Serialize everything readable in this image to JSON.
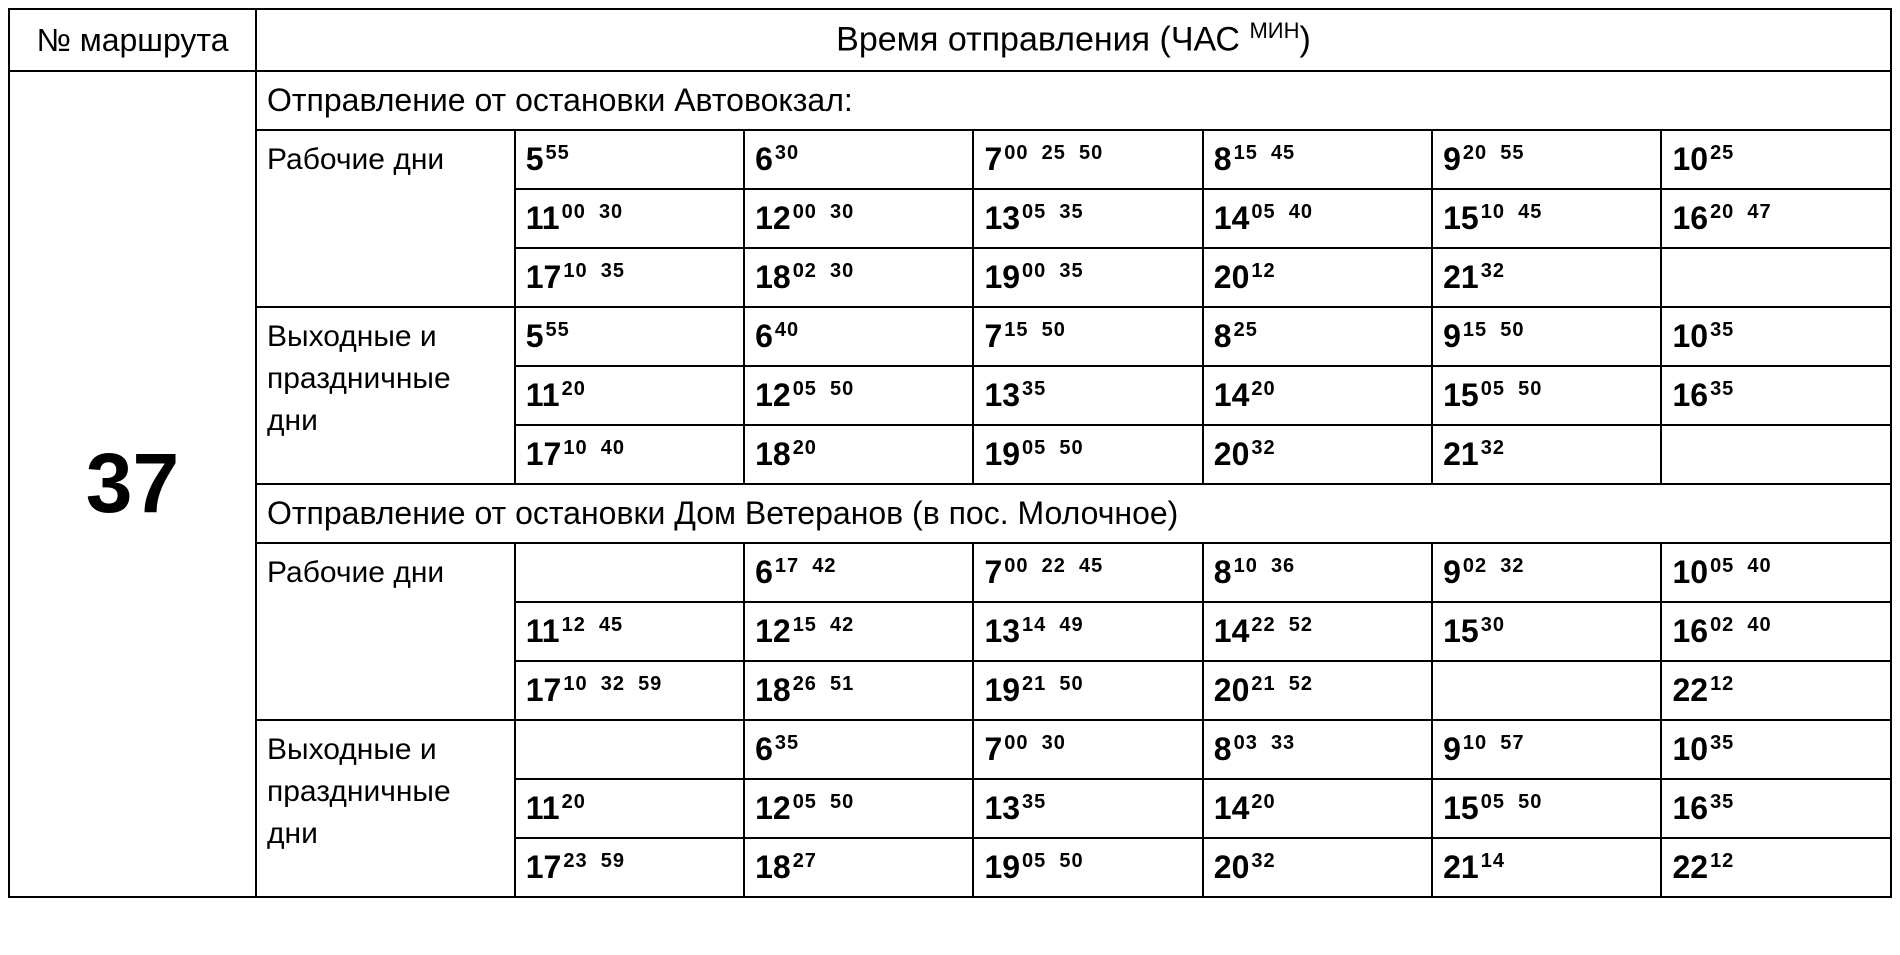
{
  "header": {
    "route_col": "№ маршрута",
    "time_col_prefix": "Время отправления (ЧАС",
    "time_col_suffix": "МИН",
    "time_col_close": ")"
  },
  "route_number": "37",
  "sections": [
    {
      "title": "Отправление от остановки Автовокзал:",
      "day_groups": [
        {
          "label": "Рабочие дни",
          "rows": [
            [
              {
                "h": "5",
                "m": [
                  "55"
                ]
              },
              {
                "h": "6",
                "m": [
                  "30"
                ]
              },
              {
                "h": "7",
                "m": [
                  "00",
                  "25",
                  "50"
                ]
              },
              {
                "h": "8",
                "m": [
                  "15",
                  "45"
                ]
              },
              {
                "h": "9",
                "m": [
                  "20",
                  "55"
                ]
              },
              {
                "h": "10",
                "m": [
                  "25"
                ]
              }
            ],
            [
              {
                "h": "11",
                "m": [
                  "00",
                  "30"
                ]
              },
              {
                "h": "12",
                "m": [
                  "00",
                  "30"
                ]
              },
              {
                "h": "13",
                "m": [
                  "05",
                  "35"
                ]
              },
              {
                "h": "14",
                "m": [
                  "05",
                  "40"
                ]
              },
              {
                "h": "15",
                "m": [
                  "10",
                  "45"
                ]
              },
              {
                "h": "16",
                "m": [
                  "20",
                  "47"
                ]
              }
            ],
            [
              {
                "h": "17",
                "m": [
                  "10",
                  "35"
                ]
              },
              {
                "h": "18",
                "m": [
                  "02",
                  "30"
                ]
              },
              {
                "h": "19",
                "m": [
                  "00",
                  "35"
                ]
              },
              {
                "h": "20",
                "m": [
                  "12"
                ]
              },
              {
                "h": "21",
                "m": [
                  "32"
                ]
              },
              null
            ]
          ]
        },
        {
          "label": "Выходные и праздничные дни",
          "rows": [
            [
              {
                "h": "5",
                "m": [
                  "55"
                ]
              },
              {
                "h": "6",
                "m": [
                  "40"
                ]
              },
              {
                "h": "7",
                "m": [
                  "15",
                  "50"
                ]
              },
              {
                "h": "8",
                "m": [
                  "25"
                ]
              },
              {
                "h": "9",
                "m": [
                  "15",
                  "50"
                ]
              },
              {
                "h": "10",
                "m": [
                  "35"
                ]
              }
            ],
            [
              {
                "h": "11",
                "m": [
                  "20"
                ]
              },
              {
                "h": "12",
                "m": [
                  "05",
                  "50"
                ]
              },
              {
                "h": "13",
                "m": [
                  "35"
                ]
              },
              {
                "h": "14",
                "m": [
                  "20"
                ]
              },
              {
                "h": "15",
                "m": [
                  "05",
                  "50"
                ]
              },
              {
                "h": "16",
                "m": [
                  "35"
                ]
              }
            ],
            [
              {
                "h": "17",
                "m": [
                  "10",
                  "40"
                ]
              },
              {
                "h": "18",
                "m": [
                  "20"
                ]
              },
              {
                "h": "19",
                "m": [
                  "05",
                  "50"
                ]
              },
              {
                "h": "20",
                "m": [
                  "32"
                ]
              },
              {
                "h": "21",
                "m": [
                  "32"
                ]
              },
              null
            ]
          ]
        }
      ]
    },
    {
      "title": "Отправление от остановки Дом Ветеранов (в пос. Молочное)",
      "day_groups": [
        {
          "label": "Рабочие дни",
          "rows": [
            [
              null,
              {
                "h": "6",
                "m": [
                  "17",
                  "42"
                ]
              },
              {
                "h": "7",
                "m": [
                  "00",
                  "22",
                  "45"
                ]
              },
              {
                "h": "8",
                "m": [
                  "10",
                  "36"
                ]
              },
              {
                "h": "9",
                "m": [
                  "02",
                  "32"
                ]
              },
              {
                "h": "10",
                "m": [
                  "05",
                  "40"
                ]
              }
            ],
            [
              {
                "h": "11",
                "m": [
                  "12",
                  "45"
                ]
              },
              {
                "h": "12",
                "m": [
                  "15",
                  "42"
                ]
              },
              {
                "h": "13",
                "m": [
                  "14",
                  "49"
                ]
              },
              {
                "h": "14",
                "m": [
                  "22",
                  "52"
                ]
              },
              {
                "h": "15",
                "m": [
                  "30"
                ]
              },
              {
                "h": "16",
                "m": [
                  "02",
                  "40"
                ]
              }
            ],
            [
              {
                "h": "17",
                "m": [
                  "10",
                  "32",
                  "59"
                ]
              },
              {
                "h": "18",
                "m": [
                  "26",
                  "51"
                ]
              },
              {
                "h": "19",
                "m": [
                  "21",
                  "50"
                ]
              },
              {
                "h": "20",
                "m": [
                  "21",
                  "52"
                ]
              },
              null,
              {
                "h": "22",
                "m": [
                  "12"
                ]
              }
            ]
          ]
        },
        {
          "label": "Выходные и праздничные дни",
          "rows": [
            [
              null,
              {
                "h": "6",
                "m": [
                  "35"
                ]
              },
              {
                "h": "7",
                "m": [
                  "00",
                  "30"
                ]
              },
              {
                "h": "8",
                "m": [
                  "03",
                  "33"
                ]
              },
              {
                "h": "9",
                "m": [
                  "10",
                  "57"
                ]
              },
              {
                "h": "10",
                "m": [
                  "35"
                ]
              }
            ],
            [
              {
                "h": "11",
                "m": [
                  "20"
                ]
              },
              {
                "h": "12",
                "m": [
                  "05",
                  "50"
                ]
              },
              {
                "h": "13",
                "m": [
                  "35"
                ]
              },
              {
                "h": "14",
                "m": [
                  "20"
                ]
              },
              {
                "h": "15",
                "m": [
                  "05",
                  "50"
                ]
              },
              {
                "h": "16",
                "m": [
                  "35"
                ]
              }
            ],
            [
              {
                "h": "17",
                "m": [
                  "23",
                  "59"
                ]
              },
              {
                "h": "18",
                "m": [
                  "27"
                ]
              },
              {
                "h": "19",
                "m": [
                  "05",
                  "50"
                ]
              },
              {
                "h": "20",
                "m": [
                  "32"
                ]
              },
              {
                "h": "21",
                "m": [
                  "14"
                ]
              },
              {
                "h": "22",
                "m": [
                  "12"
                ]
              }
            ]
          ]
        }
      ]
    }
  ],
  "style": {
    "border_color": "#000000",
    "background_color": "#ffffff",
    "text_color": "#000000",
    "route_number_fontsize": 84,
    "hour_fontsize": 32,
    "minute_fontsize": 20,
    "header_fontsize": 34,
    "row_fontsize": 30
  }
}
